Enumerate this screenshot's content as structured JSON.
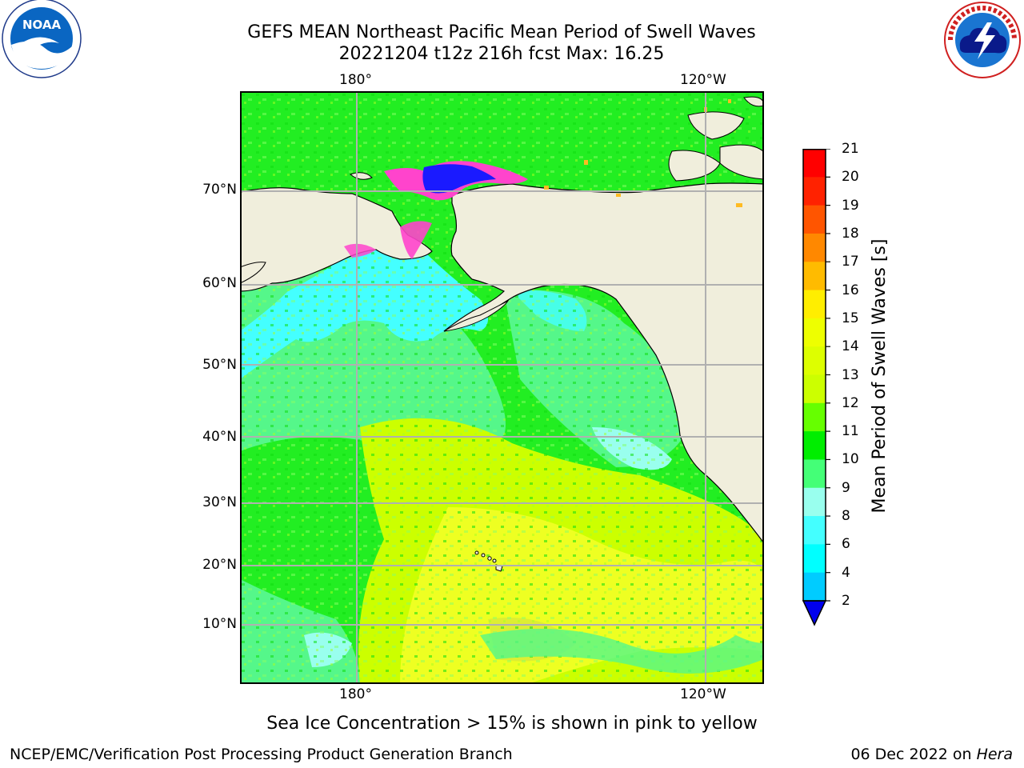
{
  "header": {
    "title_line1": "GEFS MEAN Northeast Pacific Mean Period of Swell Waves",
    "title_line2": "20221204 t12z 216h fcst   Max: 16.25"
  },
  "logos": {
    "noaa": {
      "text": "NOAA",
      "ring_text": "NATIONAL OCEANIC AND ATMOSPHERIC ADMINISTRATION · U.S. DEPARTMENT OF COMMERCE"
    },
    "nws": {
      "ring_text": "NATIONAL WEATHER SERVICE"
    }
  },
  "map": {
    "lon_labels_top": [
      "180°",
      "120°W"
    ],
    "lon_labels_bottom": [
      "180°",
      "120°W"
    ],
    "lat_labels": [
      "70°N",
      "60°N",
      "50°N",
      "40°N",
      "30°N",
      "20°N",
      "10°N"
    ],
    "colors": {
      "land": "#f0eedc",
      "coast": "#000000",
      "grid": "#b0b0b0",
      "ocean_green": "#22ee22",
      "ocean_light_green": "#55f78a",
      "ocean_cyan": "#44ffff",
      "ocean_lime": "#ccff00",
      "ocean_yellow": "#eeff22",
      "ice_pink": "#ff44cc",
      "ice_blue": "#1a1aff"
    }
  },
  "colorbar": {
    "label": "Mean Period of Swell Waves [s]",
    "ticks": [
      "21",
      "20",
      "19",
      "18",
      "17",
      "16",
      "15",
      "14",
      "13",
      "12",
      "11",
      "10",
      "9",
      "8",
      "6",
      "4",
      "2"
    ],
    "colors": [
      "#ff0000",
      "#ff2200",
      "#ff5500",
      "#ff8800",
      "#ffbb00",
      "#ffee00",
      "#eeff00",
      "#ddff00",
      "#ccff00",
      "#66ff00",
      "#00ee00",
      "#44ff77",
      "#99ffee",
      "#44ffff",
      "#00ffff",
      "#00ccff",
      "#0066ff"
    ],
    "extend_color": "#0000ee"
  },
  "note": "Sea Ice Concentration > 15% is shown in pink to yellow",
  "footer": {
    "left": "NCEP/EMC/Verification Post Processing Product Generation Branch",
    "right_date": "06 Dec 2022 on ",
    "right_host": "Hera"
  }
}
